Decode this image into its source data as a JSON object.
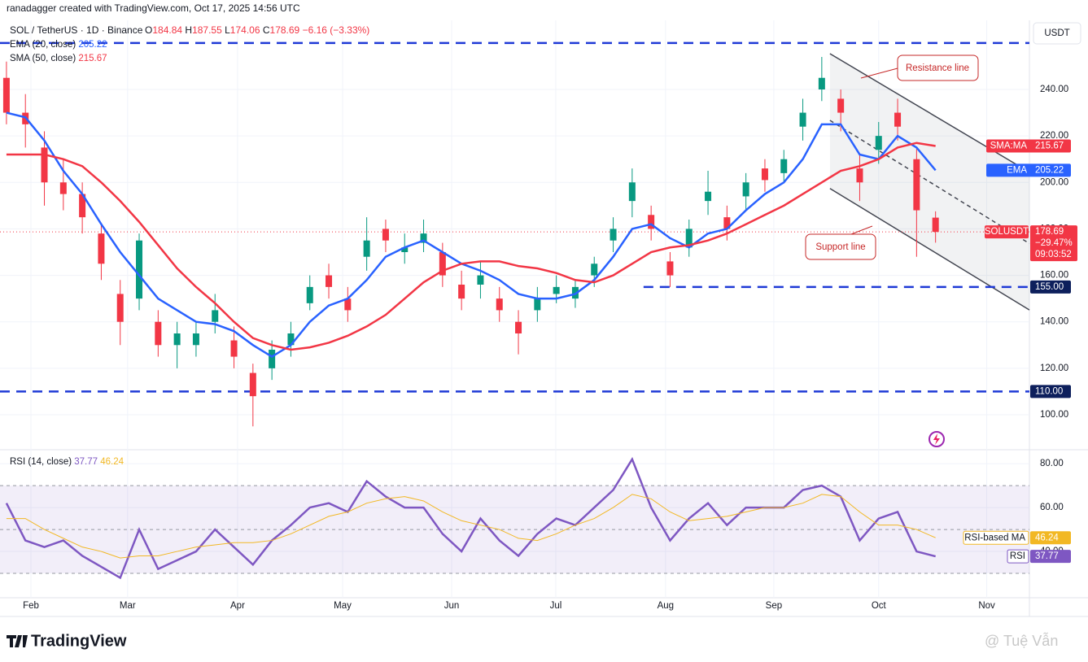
{
  "header": {
    "credit": "ranadagger created with TradingView.com, Oct 17, 2025 14:56 UTC",
    "symbol": "SOL / TetherUS · 1D · Binance",
    "ohlc": [
      [
        "O",
        184.84
      ],
      [
        "H",
        187.55
      ],
      [
        "L",
        174.06
      ],
      [
        "C",
        178.69
      ]
    ],
    "change": "−6.16 (−3.33%)",
    "currency": "USDT",
    "brand": "TradingView",
    "watermark": "@ Tuệ Vẫn"
  },
  "chart_data": [
    {
      "type": "candlestick",
      "categories": [
        null,
        null,
        null,
        null,
        null,
        null,
        null,
        null,
        null,
        null,
        null,
        null,
        null,
        null,
        null,
        null,
        null,
        null,
        null,
        null,
        null,
        null,
        null,
        null,
        null,
        null,
        null,
        null,
        null,
        null,
        null,
        null,
        null,
        null,
        null,
        null,
        null,
        null,
        null,
        null,
        null,
        null,
        null,
        null,
        null,
        null,
        null,
        null,
        null,
        null
      ],
      "open": [
        245,
        230,
        215,
        200,
        195,
        178,
        152,
        150,
        140,
        130,
        130,
        140,
        132,
        118,
        120,
        130,
        148,
        160,
        150,
        168,
        180,
        170,
        174,
        170,
        156,
        156,
        150,
        140,
        145,
        152,
        150,
        160,
        175,
        192,
        186,
        166,
        172,
        192,
        185,
        194,
        206,
        204,
        224,
        240,
        236,
        206,
        214,
        230,
        210,
        184.84
      ],
      "high": [
        252,
        238,
        222,
        210,
        200,
        182,
        158,
        178,
        145,
        140,
        140,
        152,
        138,
        122,
        132,
        140,
        160,
        165,
        155,
        185,
        184,
        178,
        184,
        174,
        162,
        166,
        155,
        145,
        155,
        160,
        158,
        168,
        185,
        206,
        190,
        170,
        184,
        205,
        190,
        204,
        210,
        214,
        236,
        254,
        240,
        212,
        226,
        236,
        215,
        187.55
      ],
      "low": [
        225,
        215,
        190,
        188,
        178,
        158,
        130,
        145,
        125,
        120,
        125,
        135,
        120,
        95,
        115,
        125,
        145,
        150,
        140,
        162,
        170,
        165,
        170,
        155,
        145,
        150,
        140,
        126,
        140,
        148,
        146,
        155,
        170,
        185,
        175,
        155,
        168,
        186,
        175,
        188,
        196,
        200,
        218,
        235,
        222,
        192,
        208,
        218,
        168,
        174.06
      ],
      "close": [
        230,
        225,
        200,
        195,
        185,
        165,
        140,
        175,
        130,
        135,
        135,
        145,
        125,
        108,
        128,
        135,
        155,
        155,
        145,
        175,
        175,
        172,
        178,
        160,
        150,
        160,
        145,
        135,
        150,
        155,
        155,
        165,
        180,
        200,
        180,
        160,
        180,
        196,
        180,
        200,
        201,
        210,
        230,
        245,
        230,
        200,
        220,
        224,
        188,
        178.69
      ],
      "up_color": "#089981",
      "down_color": "#f23645",
      "series": [
        {
          "name": "EMA (20, close)",
          "color": "#2962ff",
          "values": [
            230,
            228,
            218,
            205,
            195,
            182,
            170,
            160,
            150,
            145,
            140,
            139,
            136,
            130,
            125,
            130,
            140,
            147,
            150,
            158,
            168,
            172,
            175,
            170,
            165,
            162,
            158,
            152,
            150,
            150,
            152,
            158,
            168,
            180,
            182,
            176,
            172,
            178,
            180,
            188,
            195,
            200,
            210,
            225,
            225,
            212,
            210,
            220,
            215,
            205.22
          ]
        },
        {
          "name": "SMA (50, close)",
          "color": "#f23645",
          "values": [
            212,
            212,
            212,
            210,
            207,
            200,
            192,
            183,
            173,
            163,
            155,
            148,
            140,
            133,
            130,
            128,
            129,
            131,
            134,
            138,
            143,
            150,
            157,
            162,
            165,
            166,
            166,
            164,
            163,
            161,
            158,
            157,
            160,
            165,
            170,
            172,
            173,
            175,
            178,
            182,
            186,
            190,
            195,
            200,
            205,
            207,
            210,
            215,
            217,
            215.67
          ]
        }
      ],
      "ylim": [
        86,
        261
      ],
      "yticks": [
        {
          "value": 100,
          "label": "100.00"
        },
        {
          "value": 120,
          "label": "120.00"
        },
        {
          "value": 140,
          "label": "140.00"
        },
        {
          "value": 160,
          "label": "160.00"
        },
        {
          "value": 180,
          "label": "180.00"
        },
        {
          "value": 200,
          "label": "200.00"
        },
        {
          "value": 220,
          "label": "220.00"
        },
        {
          "value": 240,
          "label": "240.00"
        }
      ],
      "xlim": [
        -0.34,
        53.95
      ],
      "xticks": [
        {
          "value": 1.29,
          "label": "Feb"
        },
        {
          "value": 6.39,
          "label": "Mar"
        },
        {
          "value": 12.19,
          "label": "Apr"
        },
        {
          "value": 17.73,
          "label": "May"
        },
        {
          "value": 23.48,
          "label": "Jun"
        },
        {
          "value": 28.97,
          "label": "Jul"
        },
        {
          "value": 34.76,
          "label": "Aug"
        },
        {
          "value": 40.47,
          "label": "Sep"
        },
        {
          "value": 46.0,
          "label": "Oct"
        },
        {
          "value": 51.7,
          "label": "Nov"
        }
      ],
      "levels": [
        {
          "value": 260
        },
        {
          "value": 155,
          "label": "155.00"
        },
        {
          "value": 110,
          "label": "110.00"
        }
      ],
      "level_color": "#1f3ad6",
      "last": {
        "name": "SOLUSDT",
        "value": 178.69,
        "change": "−29.47%",
        "countdown": "09:03:52"
      },
      "tags": [
        {
          "name": "SMA:MA",
          "value": 215.67
        },
        {
          "name": "EMA",
          "value": 205.22
        }
      ],
      "channel": {
        "upper": {
          "x": [
            43.43,
            53.95
          ],
          "y": [
            255.4,
            204.4
          ]
        },
        "middle": {
          "x": [
            43.43,
            53.95
          ],
          "y": [
            226.7,
            173.7
          ]
        },
        "lower": {
          "x": [
            43.43,
            53.95
          ],
          "y": [
            197.4,
            145.1
          ]
        }
      },
      "annotations": [
        "Resistance line",
        "Support line"
      ]
    },
    {
      "type": "line",
      "title": "RSI (14, close)",
      "series": [
        {
          "name": "RSI",
          "color": "#7e57c2",
          "values": [
            62,
            45,
            42,
            45,
            38,
            33,
            28,
            50,
            32,
            36,
            40,
            50,
            42,
            34,
            45,
            52,
            60,
            62,
            58,
            72,
            65,
            60,
            60,
            48,
            40,
            55,
            45,
            38,
            48,
            55,
            52,
            60,
            68,
            82,
            60,
            45,
            55,
            62,
            52,
            60,
            60,
            60,
            68,
            70,
            65,
            45,
            55,
            58,
            40,
            37.77
          ]
        },
        {
          "name": "RSI-based MA",
          "color": "#f2b824",
          "values": [
            55,
            55,
            50,
            46,
            42,
            40,
            37,
            38,
            38,
            40,
            42,
            43,
            44,
            44,
            45,
            48,
            52,
            56,
            58,
            62,
            64,
            65,
            63,
            58,
            54,
            52,
            50,
            46,
            45,
            48,
            52,
            55,
            60,
            66,
            64,
            58,
            54,
            55,
            56,
            58,
            60,
            60,
            62,
            66,
            65,
            58,
            52,
            52,
            50,
            46.24
          ]
        }
      ],
      "ylim": [
        18.9,
        85.6
      ],
      "yticks": [
        {
          "value": 80,
          "label": "80.00"
        },
        {
          "value": 60,
          "label": "60.00"
        },
        {
          "value": 40,
          "label": "40.00"
        }
      ],
      "bands": [
        70,
        50,
        30
      ]
    }
  ]
}
